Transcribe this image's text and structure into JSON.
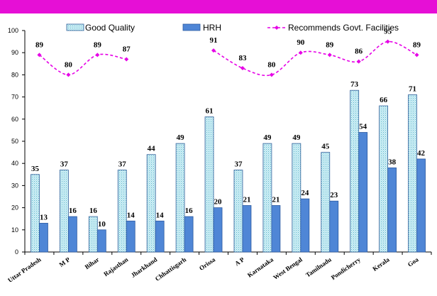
{
  "colors": {
    "top_bar": "#e60fd6",
    "good_quality_fill": "#cfeff5",
    "good_quality_stroke": "#2f5f9a",
    "hrh_fill": "#4f86d6",
    "hrh_stroke": "#2c5aa0",
    "recommends_line": "#e600e6"
  },
  "chart_data": {
    "type": "bar",
    "title": "",
    "xlabel": "",
    "ylabel": "",
    "ylim": [
      0,
      100
    ],
    "yticks": [
      0,
      10,
      20,
      30,
      40,
      50,
      60,
      70,
      80,
      90,
      100
    ],
    "grid": false,
    "legend_position": "top",
    "categories": [
      "Uttar Pradesh",
      "M P",
      "Bihar",
      "Rajasthan",
      "Jharkhand",
      "Chhattisgarh",
      "Orissa",
      "A P",
      "Karnataka",
      "West Bengal",
      "Tamilnadu",
      "Pondicherry",
      "Kerala",
      "Goa"
    ],
    "series": [
      {
        "name": "Good Quality",
        "kind": "bar",
        "values": [
          35,
          37,
          16,
          37,
          44,
          49,
          61,
          37,
          49,
          49,
          45,
          73,
          66,
          71
        ]
      },
      {
        "name": "HRH",
        "kind": "bar",
        "values": [
          13,
          16,
          10,
          14,
          14,
          16,
          20,
          21,
          21,
          24,
          23,
          54,
          38,
          42
        ]
      },
      {
        "name": "Recommends Govt. Facilities",
        "kind": "line",
        "values": [
          89,
          80,
          89,
          87,
          null,
          null,
          91,
          83,
          80,
          90,
          89,
          86,
          95,
          89
        ]
      }
    ]
  }
}
